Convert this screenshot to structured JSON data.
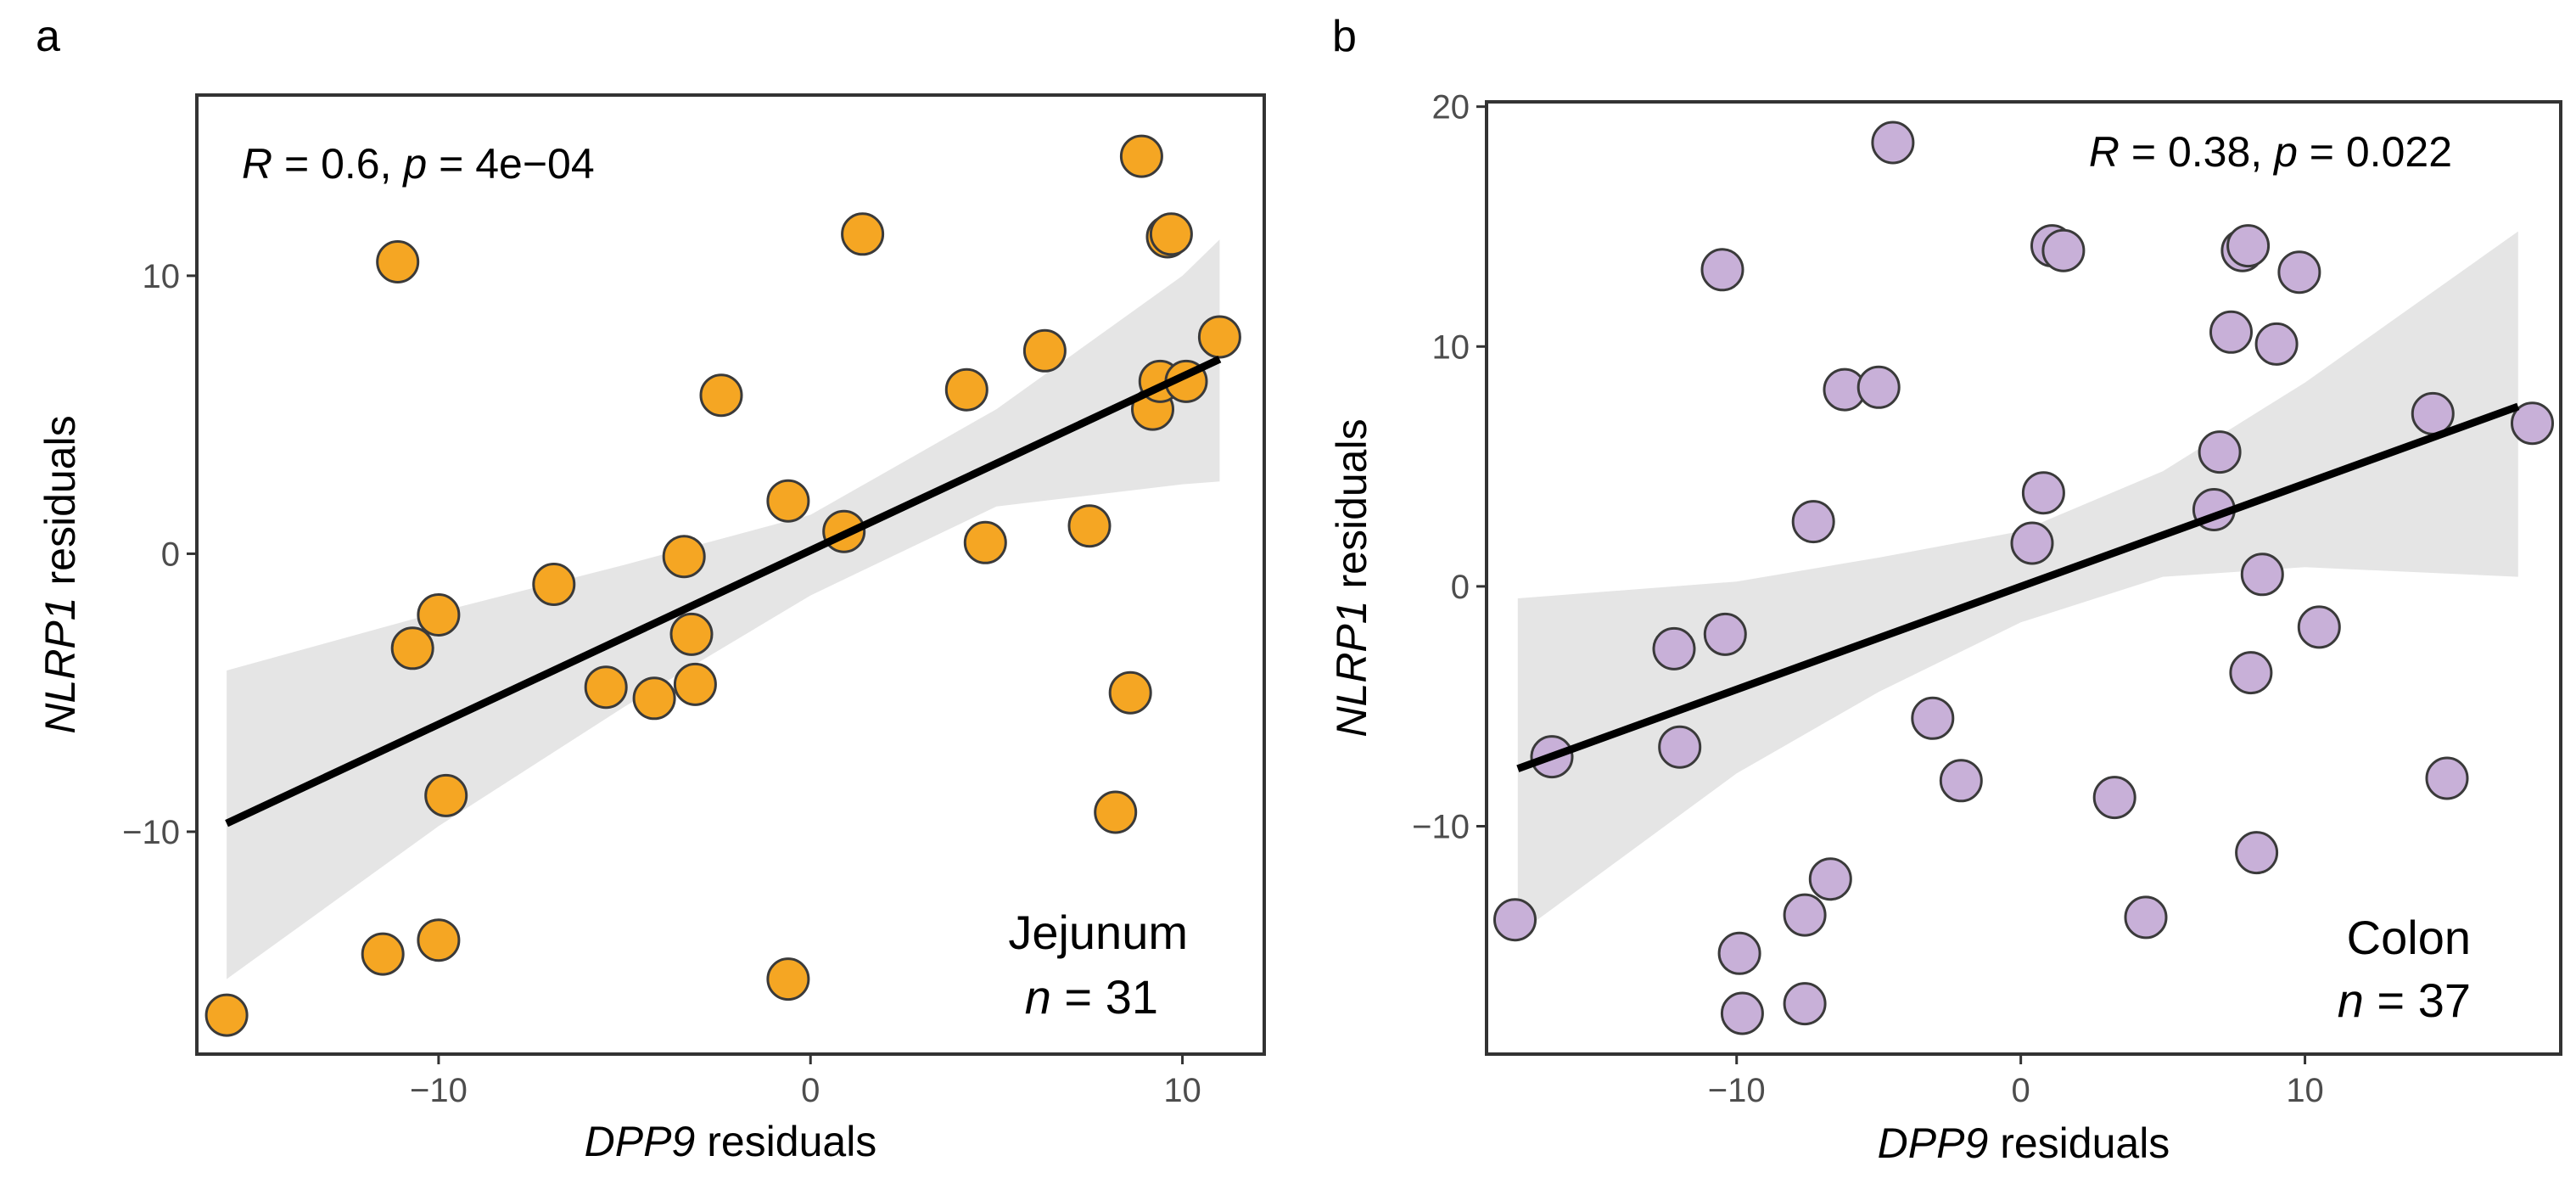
{
  "chart_data": [
    {
      "type": "scatter",
      "panel_label": "a",
      "tissue": "Jejunum",
      "n_label": "n",
      "n_value": "31",
      "stats": {
        "r_label": "R",
        "r_value": "0.6",
        "p_label": "p",
        "p_value": "4e−04"
      },
      "xlabel_italic": "DPP9",
      "xlabel_rest": "residuals",
      "ylabel_italic": "NLRP1",
      "ylabel_rest": "residuals",
      "xlim": [
        -16.5,
        12.2
      ],
      "ylim": [
        -18,
        16.5
      ],
      "xticks": [
        -10,
        0,
        10
      ],
      "xtick_labels": [
        "−10",
        "0",
        "10"
      ],
      "yticks": [
        -10,
        0,
        10
      ],
      "ytick_labels": [
        "−10",
        "0",
        "10"
      ],
      "point_color": "#F5A623",
      "point_edge": "#3a3a3a",
      "band_color": "#E5E5E5",
      "fit_line": {
        "x": [
          -15.7,
          11.0
        ],
        "y": [
          -9.7,
          7.0
        ]
      },
      "ci_band": {
        "x": [
          -15.7,
          -10,
          -5,
          0,
          5,
          10,
          11.0
        ],
        "lower": [
          -15.3,
          -9.8,
          -5.5,
          -1.5,
          1.7,
          2.5,
          2.6
        ],
        "upper": [
          -4.2,
          -2.1,
          -0.4,
          1.4,
          5.2,
          10.0,
          11.3
        ]
      },
      "points": [
        {
          "x": -15.7,
          "y": -16.6
        },
        {
          "x": -11.5,
          "y": -14.4
        },
        {
          "x": -10.0,
          "y": -13.9
        },
        {
          "x": -11.1,
          "y": 10.5
        },
        {
          "x": -10.7,
          "y": -3.4
        },
        {
          "x": -10.0,
          "y": -2.2
        },
        {
          "x": -9.8,
          "y": -8.7
        },
        {
          "x": -6.9,
          "y": -1.1
        },
        {
          "x": -5.5,
          "y": -4.8
        },
        {
          "x": -4.2,
          "y": -5.2
        },
        {
          "x": -3.4,
          "y": -0.1
        },
        {
          "x": -3.2,
          "y": -2.9
        },
        {
          "x": -3.1,
          "y": -4.7
        },
        {
          "x": -2.4,
          "y": 5.7
        },
        {
          "x": -0.6,
          "y": 1.9
        },
        {
          "x": -0.6,
          "y": -15.3
        },
        {
          "x": 0.9,
          "y": 0.8
        },
        {
          "x": 1.4,
          "y": 11.5
        },
        {
          "x": 4.2,
          "y": 5.9
        },
        {
          "x": 4.7,
          "y": 0.4
        },
        {
          "x": 6.3,
          "y": 7.3
        },
        {
          "x": 7.5,
          "y": 1.0
        },
        {
          "x": 8.2,
          "y": -9.3
        },
        {
          "x": 8.6,
          "y": -5.0
        },
        {
          "x": 8.9,
          "y": 14.3
        },
        {
          "x": 9.2,
          "y": 5.2
        },
        {
          "x": 9.4,
          "y": 6.2
        },
        {
          "x": 9.6,
          "y": 11.4
        },
        {
          "x": 9.7,
          "y": 11.5
        },
        {
          "x": 10.1,
          "y": 6.2
        },
        {
          "x": 11.0,
          "y": 7.8
        }
      ]
    },
    {
      "type": "scatter",
      "panel_label": "b",
      "tissue": "Colon",
      "n_label": "n",
      "n_value": "37",
      "stats": {
        "r_label": "R",
        "r_value": "0.38",
        "p_label": "p",
        "p_value": "0.022"
      },
      "xlabel_italic": "DPP9",
      "xlabel_rest": "residuals",
      "ylabel_italic": "NLRP1",
      "ylabel_rest": "residuals",
      "xlim": [
        -18.8,
        19.0
      ],
      "ylim": [
        -19.5,
        20.2
      ],
      "xticks": [
        -10,
        0,
        10
      ],
      "xtick_labels": [
        "−10",
        "0",
        "10"
      ],
      "yticks": [
        -10,
        0,
        10,
        20
      ],
      "ytick_labels": [
        "−10",
        "0",
        "10",
        "20"
      ],
      "point_color": "#C8B0D8",
      "point_edge": "#3a3a3a",
      "band_color": "#E5E5E5",
      "fit_line": {
        "x": [
          -17.7,
          17.5
        ],
        "y": [
          -7.6,
          7.5
        ]
      },
      "ci_band": {
        "x": [
          -17.7,
          -10,
          -5,
          0,
          5,
          10,
          17.5
        ],
        "lower": [
          -14.5,
          -7.8,
          -4.4,
          -1.5,
          0.4,
          0.8,
          0.4
        ],
        "upper": [
          -0.5,
          0.2,
          1.2,
          2.3,
          4.8,
          8.5,
          14.8
        ]
      },
      "points": [
        {
          "x": -17.8,
          "y": -13.9
        },
        {
          "x": -16.5,
          "y": -7.1
        },
        {
          "x": -12.2,
          "y": -2.6
        },
        {
          "x": -12.0,
          "y": -6.7
        },
        {
          "x": -10.5,
          "y": 13.2
        },
        {
          "x": -10.4,
          "y": -2.0
        },
        {
          "x": -9.9,
          "y": -15.3
        },
        {
          "x": -9.8,
          "y": -17.8
        },
        {
          "x": -7.6,
          "y": -17.4
        },
        {
          "x": -7.6,
          "y": -13.7
        },
        {
          "x": -7.3,
          "y": 2.7
        },
        {
          "x": -6.7,
          "y": -12.2
        },
        {
          "x": -6.2,
          "y": 8.2
        },
        {
          "x": -5.0,
          "y": 8.3
        },
        {
          "x": -4.5,
          "y": 18.5
        },
        {
          "x": -3.1,
          "y": -5.5
        },
        {
          "x": -2.1,
          "y": -8.1
        },
        {
          "x": 0.4,
          "y": 1.8
        },
        {
          "x": 0.8,
          "y": 3.9
        },
        {
          "x": 1.1,
          "y": 14.2
        },
        {
          "x": 1.5,
          "y": 14.0
        },
        {
          "x": 3.3,
          "y": -8.8
        },
        {
          "x": 4.4,
          "y": -13.8
        },
        {
          "x": 6.8,
          "y": 3.2
        },
        {
          "x": 7.0,
          "y": 5.6
        },
        {
          "x": 7.4,
          "y": 10.6
        },
        {
          "x": 7.8,
          "y": 14.0
        },
        {
          "x": 8.0,
          "y": 14.2
        },
        {
          "x": 8.1,
          "y": -3.6
        },
        {
          "x": 8.3,
          "y": -11.1
        },
        {
          "x": 8.5,
          "y": 0.5
        },
        {
          "x": 9.0,
          "y": 10.1
        },
        {
          "x": 9.8,
          "y": 13.1
        },
        {
          "x": 10.5,
          "y": -1.7
        },
        {
          "x": 14.5,
          "y": 7.2
        },
        {
          "x": 15.0,
          "y": -8.0
        },
        {
          "x": 18.0,
          "y": 6.8
        }
      ]
    }
  ]
}
